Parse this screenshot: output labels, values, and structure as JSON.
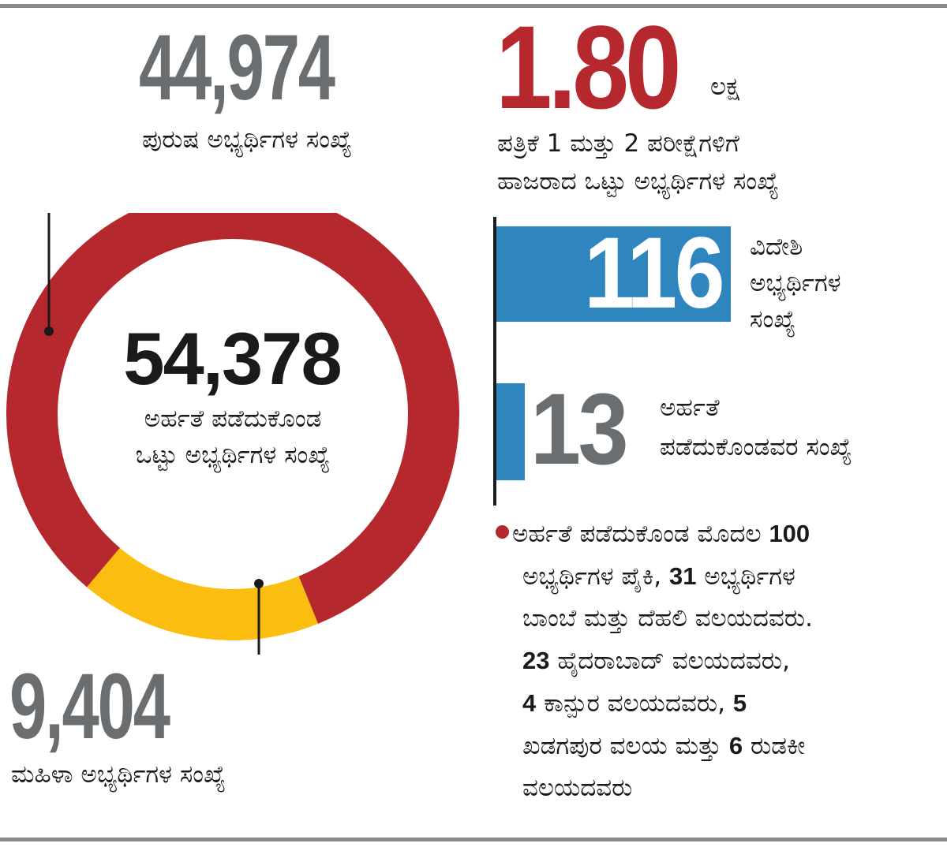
{
  "chart_data": {
    "type": "pie",
    "variant": "donut",
    "categories": [
      "ಪುರುಷ ಅಭ್ಯರ್ಥಿಗಳ ಸಂಖ್ಯೆ",
      "ಮಹಿಳಾ ಅಭ್ಯರ್ಥಿಗಳ ಸಂಖ್ಯೆ"
    ],
    "values": [
      44974,
      9404
    ],
    "colors": [
      "#b5282e",
      "#fbbd0f"
    ],
    "total": 54378
  },
  "male": {
    "value": "44,974",
    "label": "ಪುರುಷ ಅಭ್ಯರ್ಥಿಗಳ ಸಂಖ್ಯೆ"
  },
  "female": {
    "value": "9,404",
    "label": "ಮಹಿಳಾ ಅಭ್ಯರ್ಥಿಗಳ ಸಂಖ್ಯೆ"
  },
  "center": {
    "value": "54,378",
    "label_line1": "ಅರ್ಹತೆ ಪಡೆದುಕೊಂಡ",
    "label_line2": "ಒಟ್ಟು ಅಭ್ಯರ್ಥಿಗಳ ಸಂಖ್ಯೆ"
  },
  "total_appeared": {
    "value": "1.80",
    "unit": "ಲಕ್ಷ",
    "label_line1": "ಪತ್ರಿಕೆ 1 ಮತ್ತು 2 ಪರೀಕ್ಷೆಗಳಿಗೆ",
    "label_line2": "ಹಾಜರಾದ ಒಟ್ಟು ಅಭ್ಯರ್ಥಿಗಳ ಸಂಖ್ಯೆ"
  },
  "foreign": {
    "value": "116",
    "label_line1": "ವಿದೇಶಿ",
    "label_line2": "ಅಭ್ಯರ್ಥಿಗಳ",
    "label_line3": "ಸಂಖ್ಯೆ"
  },
  "eligible_foreign": {
    "value": "13",
    "label_line1": "ಅರ್ಹತೆ",
    "label_line2": "ಪಡೆದುಕೊಂಡವರ ಸಂಖ್ಯೆ"
  },
  "note": {
    "l1a": "ಅರ್ಹತೆ ಪಡೆದುಕೊಂಡ ಮೊದಲ ",
    "l1b": "100",
    "l2a": "ಅಭ್ಯರ್ಥಿಗಳ ಪೈಕಿ, ",
    "l2b": "31",
    "l2c": " ಅಭ್ಯರ್ಥಿಗಳ",
    "l3": "ಬಾಂಬೆ ಮತ್ತು ದೆಹಲಿ ವಲಯದವರು.",
    "l4a": "23",
    "l4b": " ಹೈದರಾಬಾದ್ ವಲಯದವರು,",
    "l5a": "4",
    "l5b": " ಕಾನ್ಪುರ ವಲಯದವರು, ",
    "l5c": "5",
    "l6a": "ಖಡಗಪುರ ವಲಯ ಮತ್ತು ",
    "l6b": "6",
    "l6c": " ರುಡಕೀ",
    "l7": "ವಲಯದವರು"
  }
}
